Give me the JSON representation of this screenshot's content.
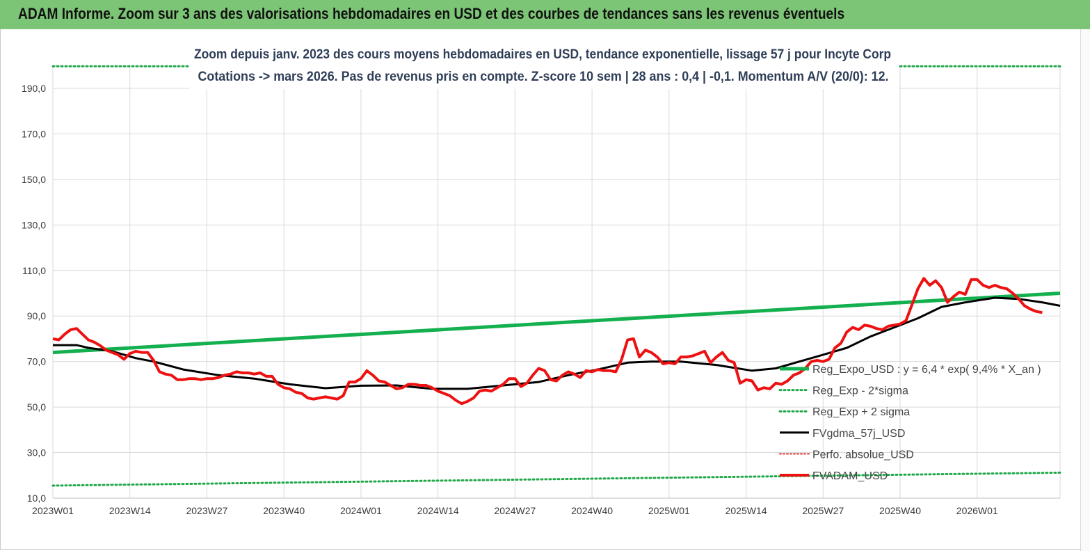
{
  "header": {
    "title": "ADAM Informe. Zoom sur 3 ans des valorisations hebdomadaires en USD et des courbes de tendances sans les revenus éventuels"
  },
  "colors": {
    "header_bg": "#7dc576",
    "trend_green": "#14b050",
    "sigma_green": "#22a84a",
    "price_red": "#ee1111",
    "avg_black": "#000000",
    "perfo_red": "#e03030"
  },
  "chart_data": {
    "type": "line",
    "title_lines": [
      "Zoom depuis janv. 2023 des cours moyens hebdomadaires en USD, tendance exponentielle, lissage 57 j pour Incyte Corp",
      "Cotations -> mars 2026. Pas de revenus pris en compte. Z-score 10 sem | 28 ans : 0,4 | -0,1. Momentum A/V (20/0): 12."
    ],
    "ylim": [
      10,
      200
    ],
    "y_ticks": [
      "10,0",
      "30,0",
      "50,0",
      "70,0",
      "90,0",
      "110,0",
      "130,0",
      "150,0",
      "170,0",
      "190,0"
    ],
    "y_tick_values": [
      10,
      30,
      50,
      70,
      90,
      110,
      130,
      150,
      170,
      190
    ],
    "x_ticks": [
      "2023W01",
      "2023W14",
      "2023W27",
      "2023W40",
      "2024W01",
      "2024W14",
      "2024W27",
      "2024W40",
      "2025W01",
      "2025W14",
      "2025W27",
      "2025W40",
      "2026W01"
    ],
    "x_tick_weeks": [
      0,
      13,
      26,
      39,
      52,
      65,
      78,
      91,
      104,
      117,
      130,
      143,
      156
    ],
    "x_max_week": 170,
    "grid": true,
    "legend_position": "bottom-right",
    "series": [
      {
        "name": "Reg_Expo_USD : y = 6,4 * exp( 9,4% * X_an )",
        "style": "trend",
        "points": [
          [
            0,
            74
          ],
          [
            170,
            100
          ]
        ]
      },
      {
        "name": "Reg_Exp - 2*sigma",
        "style": "sigma",
        "points": [
          [
            0,
            15.5
          ],
          [
            170,
            21.2
          ]
        ]
      },
      {
        "name": "Reg_Exp + 2 sigma",
        "style": "sigma",
        "points": [
          [
            0,
            199.7
          ],
          [
            170,
            199.7
          ]
        ]
      },
      {
        "name": "FVgdma_57j_USD",
        "style": "avg",
        "points": [
          [
            0,
            77.2
          ],
          [
            4,
            77.2
          ],
          [
            6,
            76
          ],
          [
            10,
            74.5
          ],
          [
            14,
            71.5
          ],
          [
            17,
            70
          ],
          [
            22,
            66.5
          ],
          [
            28,
            64
          ],
          [
            34,
            62.5
          ],
          [
            40,
            60
          ],
          [
            46,
            58.3
          ],
          [
            52,
            59.4
          ],
          [
            58,
            59.5
          ],
          [
            64,
            58
          ],
          [
            70,
            58
          ],
          [
            76,
            59.5
          ],
          [
            82,
            61
          ],
          [
            87,
            64
          ],
          [
            92,
            66.5
          ],
          [
            97,
            69.5
          ],
          [
            101,
            70
          ],
          [
            106,
            70
          ],
          [
            112,
            68.5
          ],
          [
            118,
            66
          ],
          [
            122,
            67
          ],
          [
            126,
            70
          ],
          [
            130,
            73
          ],
          [
            134,
            76
          ],
          [
            138,
            81
          ],
          [
            142,
            85
          ],
          [
            146,
            89
          ],
          [
            150,
            94
          ],
          [
            154,
            96
          ],
          [
            159,
            98
          ],
          [
            163,
            97.5
          ],
          [
            167,
            96
          ],
          [
            170,
            94.5
          ]
        ]
      },
      {
        "name": "Perfo. absolue_USD",
        "style": "perfo",
        "points": []
      },
      {
        "name": "FVADAM_USD",
        "style": "price",
        "points": [
          [
            0,
            80
          ],
          [
            1,
            79.5
          ],
          [
            2,
            82
          ],
          [
            3,
            84
          ],
          [
            4,
            84.5
          ],
          [
            5,
            82
          ],
          [
            6,
            79.5
          ],
          [
            7,
            78.5
          ],
          [
            8,
            77
          ],
          [
            9,
            75
          ],
          [
            10,
            74
          ],
          [
            11,
            73
          ],
          [
            12,
            71
          ],
          [
            13,
            73.5
          ],
          [
            14,
            74.5
          ],
          [
            15,
            74
          ],
          [
            16,
            74
          ],
          [
            17,
            70.5
          ],
          [
            18,
            65.5
          ],
          [
            19,
            64.5
          ],
          [
            20,
            64
          ],
          [
            21,
            62
          ],
          [
            22,
            62
          ],
          [
            23,
            62.5
          ],
          [
            24,
            62.5
          ],
          [
            25,
            62
          ],
          [
            26,
            62.5
          ],
          [
            27,
            62.5
          ],
          [
            28,
            63
          ],
          [
            29,
            64
          ],
          [
            30,
            64.5
          ],
          [
            31,
            65.5
          ],
          [
            32,
            65
          ],
          [
            33,
            65
          ],
          [
            34,
            64.5
          ],
          [
            35,
            65
          ],
          [
            36,
            63.5
          ],
          [
            37,
            63.5
          ],
          [
            38,
            60
          ],
          [
            39,
            58.5
          ],
          [
            40,
            58
          ],
          [
            41,
            56.5
          ],
          [
            42,
            56
          ],
          [
            43,
            54
          ],
          [
            44,
            53.5
          ],
          [
            45,
            54
          ],
          [
            46,
            54.5
          ],
          [
            47,
            54
          ],
          [
            48,
            53.5
          ],
          [
            49,
            55
          ],
          [
            50,
            61
          ],
          [
            51,
            61
          ],
          [
            52,
            62.5
          ],
          [
            53,
            66
          ],
          [
            54,
            64
          ],
          [
            55,
            61.5
          ],
          [
            56,
            61
          ],
          [
            57,
            59.5
          ],
          [
            58,
            58
          ],
          [
            59,
            58.5
          ],
          [
            60,
            60
          ],
          [
            61,
            60
          ],
          [
            62,
            59.5
          ],
          [
            63,
            59.5
          ],
          [
            64,
            58.5
          ],
          [
            65,
            57
          ],
          [
            66,
            56
          ],
          [
            67,
            55
          ],
          [
            68,
            53
          ],
          [
            69,
            51.5
          ],
          [
            70,
            52.5
          ],
          [
            71,
            54
          ],
          [
            72,
            57
          ],
          [
            73,
            57.5
          ],
          [
            74,
            57
          ],
          [
            75,
            58.5
          ],
          [
            76,
            60
          ],
          [
            77,
            62.5
          ],
          [
            78,
            62.5
          ],
          [
            79,
            59
          ],
          [
            80,
            60.5
          ],
          [
            81,
            64
          ],
          [
            82,
            67
          ],
          [
            83,
            66
          ],
          [
            84,
            62
          ],
          [
            85,
            61.5
          ],
          [
            86,
            64
          ],
          [
            87,
            65.5
          ],
          [
            88,
            64.5
          ],
          [
            89,
            63
          ],
          [
            90,
            66
          ],
          [
            91,
            65.5
          ],
          [
            92,
            66.5
          ],
          [
            93,
            66
          ],
          [
            94,
            66
          ],
          [
            95,
            65.5
          ],
          [
            96,
            71
          ],
          [
            97,
            79.5
          ],
          [
            98,
            80
          ],
          [
            99,
            72
          ],
          [
            100,
            75
          ],
          [
            101,
            74
          ],
          [
            102,
            72
          ],
          [
            103,
            69
          ],
          [
            104,
            69.5
          ],
          [
            105,
            69
          ],
          [
            106,
            72
          ],
          [
            107,
            72
          ],
          [
            108,
            72.5
          ],
          [
            109,
            73.5
          ],
          [
            110,
            74.5
          ],
          [
            111,
            69.5
          ],
          [
            112,
            72
          ],
          [
            113,
            74
          ],
          [
            114,
            70.5
          ],
          [
            115,
            69.5
          ],
          [
            116,
            60.5
          ],
          [
            117,
            62
          ],
          [
            118,
            61.5
          ],
          [
            119,
            57.5
          ],
          [
            120,
            58.5
          ],
          [
            121,
            58
          ],
          [
            122,
            60.5
          ],
          [
            123,
            60
          ],
          [
            124,
            61.5
          ],
          [
            125,
            64
          ],
          [
            126,
            65
          ],
          [
            127,
            67
          ],
          [
            128,
            70
          ],
          [
            129,
            70.5
          ],
          [
            130,
            70
          ],
          [
            131,
            71
          ],
          [
            132,
            76
          ],
          [
            133,
            78
          ],
          [
            134,
            83
          ],
          [
            135,
            85
          ],
          [
            136,
            84
          ],
          [
            137,
            86
          ],
          [
            138,
            85.5
          ],
          [
            139,
            84.5
          ],
          [
            140,
            84
          ],
          [
            141,
            85.5
          ],
          [
            142,
            86
          ],
          [
            143,
            86.5
          ],
          [
            144,
            88
          ],
          [
            145,
            95
          ],
          [
            146,
            102
          ],
          [
            147,
            106.5
          ],
          [
            148,
            103.5
          ],
          [
            149,
            105.5
          ],
          [
            150,
            102.5
          ],
          [
            151,
            96
          ],
          [
            152,
            98.5
          ],
          [
            153,
            100.5
          ],
          [
            154,
            99.5
          ],
          [
            155,
            106
          ],
          [
            156,
            106
          ],
          [
            157,
            103.5
          ],
          [
            158,
            102.5
          ],
          [
            159,
            103.5
          ],
          [
            160,
            102.5
          ],
          [
            161,
            102
          ],
          [
            162,
            100
          ],
          [
            163,
            97.5
          ],
          [
            164,
            94.5
          ],
          [
            165,
            93
          ],
          [
            166,
            92
          ],
          [
            167,
            91.5
          ]
        ]
      }
    ]
  }
}
